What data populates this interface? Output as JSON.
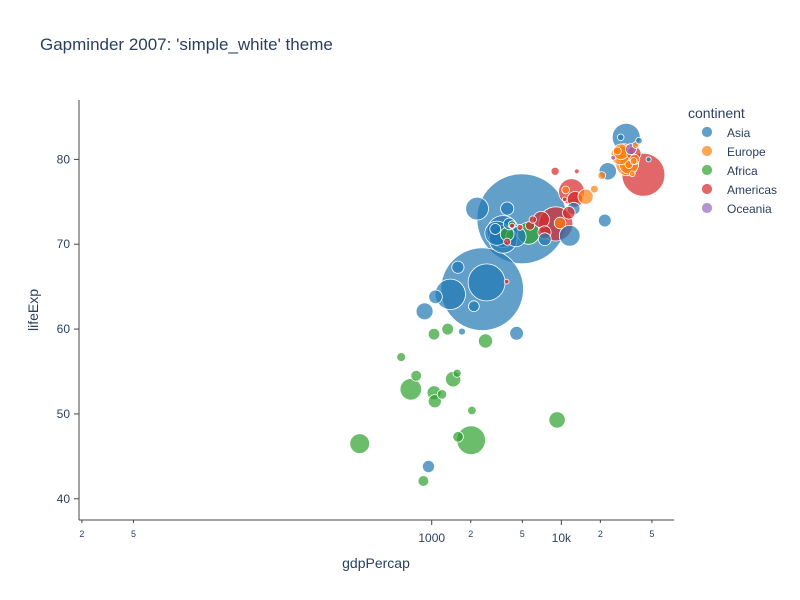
{
  "chart_data": {
    "type": "scatter",
    "title": "Gapminder 2007: 'simple_white' theme",
    "xlabel": "gdpPercap",
    "ylabel": "lifeExp",
    "x_scale": "log",
    "xlim": [
      1.9,
      74000
    ],
    "ylim": [
      37.5,
      87
    ],
    "x_major_ticks": [
      {
        "value": 1000,
        "label": "1000"
      },
      {
        "value": 10000,
        "label": "10k"
      }
    ],
    "x_minor_ticks": [
      {
        "value": 2,
        "label": "2"
      },
      {
        "value": 5,
        "label": "5"
      },
      {
        "value": 2000,
        "label": "2"
      },
      {
        "value": 5000,
        "label": "5"
      },
      {
        "value": 20000,
        "label": "2"
      },
      {
        "value": 50000,
        "label": "5"
      }
    ],
    "y_ticks": [
      40,
      50,
      60,
      70,
      80
    ],
    "grid": false,
    "legend": {
      "title": "continent",
      "placement": "right"
    },
    "series": [
      {
        "name": "Asia",
        "color": "#1f77b4",
        "points": [
          [
            4959,
            73.0,
            1319
          ],
          [
            2452,
            64.7,
            1110
          ],
          [
            2650,
            65.5,
            223
          ],
          [
            3541,
            71.5,
            165
          ],
          [
            1391,
            64.1,
            150
          ],
          [
            3548,
            70.6,
            128
          ],
          [
            3190,
            71.3,
            95
          ],
          [
            2239,
            74.2,
            85
          ],
          [
            11606,
            71.0,
            70
          ],
          [
            4471,
            70.9,
            66
          ],
          [
            31656,
            82.6,
            127
          ],
          [
            22833,
            78.6,
            49
          ],
          [
            1069,
            63.8,
            30
          ],
          [
            882,
            62.1,
            47
          ],
          [
            944,
            43.8,
            24
          ],
          [
            1593,
            67.3,
            24
          ],
          [
            3970,
            72.4,
            23
          ],
          [
            3095,
            71.8,
            20
          ],
          [
            2117,
            62.7,
            19
          ],
          [
            3822,
            74.2,
            28
          ],
          [
            7458,
            70.6,
            27
          ],
          [
            12452,
            74.2,
            26
          ],
          [
            21654,
            72.8,
            27
          ],
          [
            4519,
            59.5,
            31
          ],
          [
            39725,
            82.2,
            7
          ],
          [
            47143,
            80.0,
            4.5
          ],
          [
            28718,
            82.6,
            7
          ],
          [
            1714,
            59.7,
            8
          ]
        ]
      },
      {
        "name": "Europe",
        "color": "#ff7f0e",
        "points": [
          [
            32170,
            79.4,
            82
          ],
          [
            30470,
            80.7,
            61
          ],
          [
            28570,
            80.5,
            58
          ],
          [
            33203,
            79.4,
            60
          ],
          [
            28821,
            80.9,
            40
          ],
          [
            15389,
            75.6,
            38
          ],
          [
            9787,
            72.5,
            22
          ],
          [
            10808,
            76.4,
            10
          ],
          [
            27036,
            81.0,
            10.6
          ],
          [
            20510,
            78.1,
            10
          ],
          [
            18008,
            76.5,
            10
          ],
          [
            36126,
            79.8,
            8.2
          ],
          [
            36798,
            80.0,
            16.6
          ],
          [
            33207,
            79.4,
            10.4
          ],
          [
            35278,
            78.3,
            5.5
          ],
          [
            37506,
            81.7,
            7.5
          ]
        ]
      },
      {
        "name": "Africa",
        "color": "#2ca02c",
        "points": [
          [
            2014,
            46.9,
            135
          ],
          [
            690,
            52.9,
            76
          ],
          [
            5581,
            71.3,
            80
          ],
          [
            278,
            46.5,
            64
          ],
          [
            9270,
            49.3,
            44
          ],
          [
            1463,
            54.1,
            39
          ],
          [
            2602,
            58.6,
            33
          ],
          [
            1044,
            52.5,
            32
          ],
          [
            1056,
            51.5,
            28
          ],
          [
            3820,
            71.2,
            31
          ],
          [
            1328,
            60.0,
            23
          ],
          [
            1598,
            47.3,
            18
          ],
          [
            1042,
            59.4,
            22
          ],
          [
            581,
            56.7,
            13
          ],
          [
            759,
            54.5,
            19
          ],
          [
            863,
            42.1,
            19
          ],
          [
            1569,
            54.8,
            11
          ],
          [
            4173,
            72.3,
            10
          ],
          [
            2042,
            50.4,
            12
          ],
          [
            1201,
            52.3,
            15
          ]
        ]
      },
      {
        "name": "Americas",
        "color": "#d62728",
        "points": [
          [
            42952,
            78.2,
            301
          ],
          [
            9065,
            72.4,
            191
          ],
          [
            11978,
            76.2,
            108
          ],
          [
            7007,
            72.9,
            44
          ],
          [
            12779,
            75.3,
            40
          ],
          [
            36319,
            80.7,
            33
          ],
          [
            7409,
            71.4,
            28
          ],
          [
            11416,
            73.7,
            26
          ],
          [
            8948,
            78.6,
            11
          ],
          [
            6025,
            72.9,
            9
          ],
          [
            3822,
            70.3,
            8.5
          ],
          [
            5728,
            72.2,
            14
          ],
          [
            13171,
            78.6,
            4
          ],
          [
            4173,
            72.2,
            4
          ],
          [
            10611,
            75.3,
            3.4
          ],
          [
            4797,
            72.0,
            6
          ],
          [
            3784,
            65.6,
            3.6
          ]
        ]
      },
      {
        "name": "Oceania",
        "color": "#9467bd",
        "points": [
          [
            34435,
            81.2,
            20
          ],
          [
            25185,
            80.2,
            4
          ]
        ]
      }
    ]
  }
}
